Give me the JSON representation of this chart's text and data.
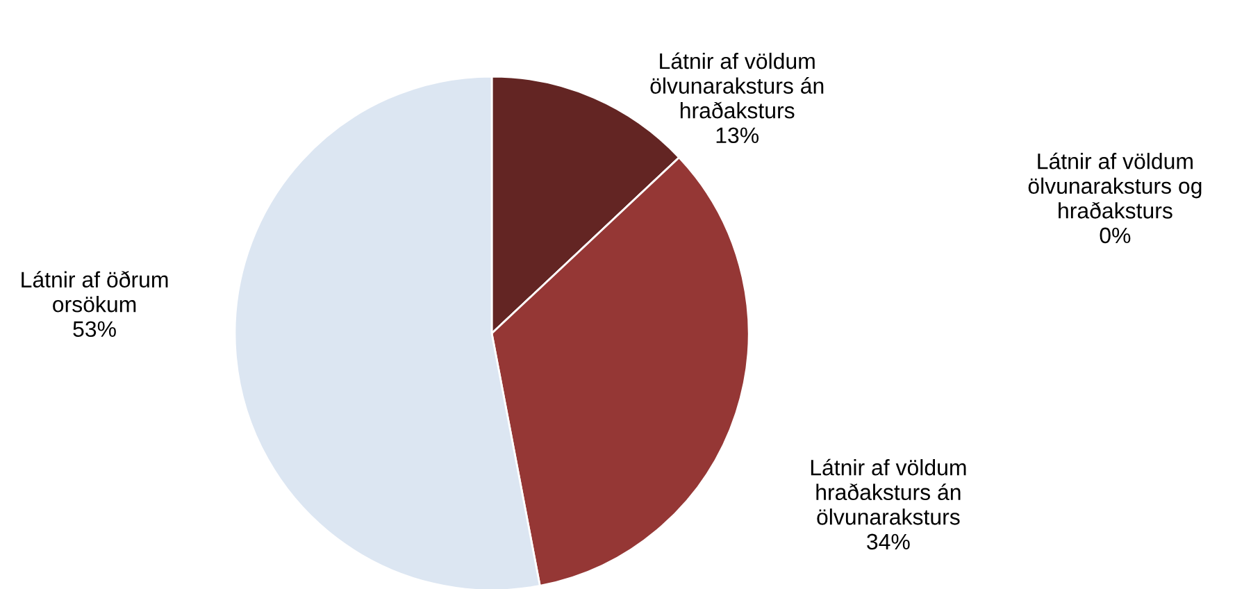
{
  "chart_data": {
    "type": "pie",
    "categories": [
      "Látnir af völdum\nölvunaraksturs án\nhraðaksturs",
      "Látnir af völdum\nölvunaraksturs og\nhraðaksturs",
      "Látnir af völdum\nhraðaksturs án\nölvunaraksturs",
      "Látnir af öðrum\norsökum"
    ],
    "values": [
      13,
      0,
      34,
      53
    ],
    "colors": [
      "#632523",
      "#c0504d",
      "#953735",
      "#dce6f2"
    ],
    "value_labels": [
      "13%",
      "0%",
      "34%",
      "53%"
    ],
    "legend": false
  }
}
